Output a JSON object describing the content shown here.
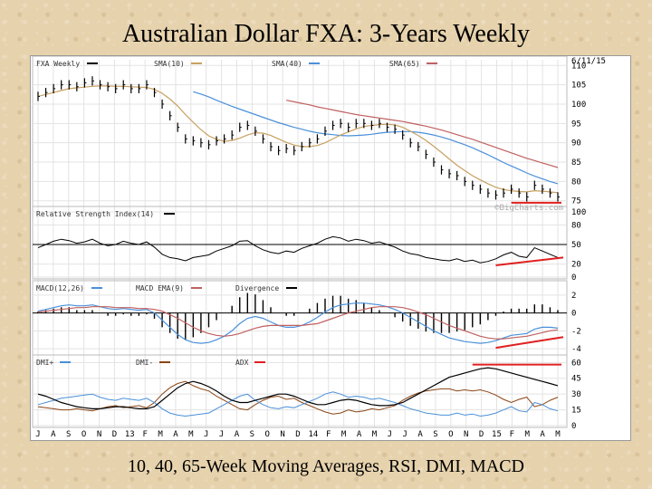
{
  "slide": {
    "title": "Australian Dollar FXA: 3-Years Weekly",
    "caption": "10, 40, 65-Week Moving Averages, RSI, DMI, MACD"
  },
  "chart_data": {
    "type": "line",
    "date_label": "6/11/15",
    "watermark": "©BigCharts.com",
    "colors": {
      "price": "#000000",
      "ma10": "#c8a060",
      "ma40": "#4a90d9",
      "ma65": "#c06060",
      "annotation": "#e02020",
      "divergence": "#000000",
      "adx": "#000000",
      "dmi_plus": "#4a90d9",
      "dmi_minus": "#8b4513"
    },
    "x_ticks": [
      "J",
      "A",
      "S",
      "O",
      "N",
      "D",
      "13",
      "F",
      "M",
      "A",
      "M",
      "J",
      "J",
      "A",
      "S",
      "O",
      "N",
      "D",
      "14",
      "F",
      "M",
      "A",
      "M",
      "J",
      "J",
      "A",
      "S",
      "O",
      "N",
      "D",
      "15",
      "F",
      "M",
      "A",
      "M"
    ],
    "panels": [
      {
        "id": "price",
        "legend": [
          "FXA Weekly",
          "SMA(10)",
          "SMA(40)",
          "SMA(65)"
        ],
        "y_ticks": [
          110,
          105,
          100,
          95,
          90,
          85,
          80,
          75
        ],
        "ylim": [
          74,
          111
        ],
        "series": {
          "price": [
            102,
            103,
            104,
            105,
            105,
            104.5,
            105.5,
            106,
            105,
            104.5,
            104,
            105,
            104,
            104,
            105,
            103,
            100,
            97,
            94,
            91,
            90.5,
            90,
            89.5,
            90.5,
            91,
            92,
            94,
            94.5,
            93,
            91,
            89,
            88,
            88.5,
            88,
            89,
            90,
            91,
            93,
            94.5,
            95,
            94,
            95,
            95,
            94.5,
            95,
            94,
            93.5,
            92,
            90,
            89,
            87,
            85,
            83,
            82,
            81.5,
            80,
            79,
            78,
            77,
            76.5,
            77,
            78,
            77,
            76,
            79,
            78,
            77,
            76
          ],
          "ma10": [
            102,
            102.5,
            103,
            103.5,
            104,
            104.2,
            104.4,
            104.6,
            104.7,
            104.7,
            104.6,
            104.6,
            104.5,
            104.4,
            104.3,
            103.8,
            102.8,
            101.3,
            99.5,
            97.3,
            95.3,
            93.4,
            91.8,
            90.9,
            90.4,
            90.6,
            91.2,
            92,
            92.6,
            92.5,
            91.9,
            91,
            90.1,
            89.4,
            89,
            89,
            89.3,
            90,
            91,
            92,
            92.8,
            93.6,
            94.2,
            94.5,
            94.7,
            94.8,
            94.6,
            94,
            93,
            91.9,
            90.6,
            89.1,
            87.5,
            85.8,
            84.2,
            82.8,
            81.5,
            80.4,
            79.4,
            78.5,
            77.9,
            77.6,
            77.4,
            77.3,
            77.6,
            77.5,
            77.3,
            77.1
          ],
          "ma40": [
            null,
            null,
            null,
            null,
            null,
            null,
            null,
            null,
            null,
            null,
            null,
            null,
            null,
            null,
            null,
            null,
            null,
            null,
            null,
            null,
            103.2,
            102.6,
            101.9,
            101,
            100.2,
            99.4,
            98.7,
            98,
            97.3,
            96.6,
            95.9,
            95.2,
            94.6,
            94,
            93.5,
            93,
            92.6,
            92.3,
            92.1,
            91.9,
            91.8,
            91.9,
            92,
            92.2,
            92.5,
            92.7,
            92.8,
            92.9,
            92.9,
            92.7,
            92.4,
            92,
            91.5,
            90.9,
            90.2,
            89.5,
            88.7,
            87.8,
            86.9,
            85.9,
            84.9,
            84,
            83.1,
            82.2,
            81.4,
            80.7,
            80,
            79.4
          ],
          "ma65": [
            null,
            null,
            null,
            null,
            null,
            null,
            null,
            null,
            null,
            null,
            null,
            null,
            null,
            null,
            null,
            null,
            null,
            null,
            null,
            null,
            null,
            null,
            null,
            null,
            null,
            null,
            null,
            null,
            null,
            null,
            null,
            null,
            101,
            100.6,
            100.2,
            99.8,
            99.3,
            98.9,
            98.5,
            98.1,
            97.7,
            97.3,
            97,
            96.7,
            96.4,
            96.1,
            95.8,
            95.5,
            95.1,
            94.7,
            94.3,
            93.8,
            93.3,
            92.7,
            92.1,
            91.5,
            90.9,
            90.2,
            89.5,
            88.8,
            88.1,
            87.4,
            86.7,
            86,
            85.4,
            84.8,
            84.2,
            83.6
          ]
        }
      },
      {
        "id": "rsi",
        "legend": [
          "Relative Strength Index(14)"
        ],
        "y_ticks": [
          100,
          80,
          50,
          20,
          0
        ],
        "ylim": [
          0,
          100
        ],
        "series": {
          "rsi": [
            45,
            50,
            55,
            58,
            56,
            52,
            54,
            58,
            52,
            48,
            50,
            55,
            52,
            50,
            54,
            46,
            35,
            30,
            28,
            25,
            30,
            32,
            34,
            40,
            44,
            48,
            55,
            56,
            48,
            42,
            38,
            36,
            40,
            38,
            44,
            48,
            52,
            58,
            62,
            60,
            55,
            58,
            56,
            52,
            54,
            50,
            46,
            40,
            36,
            34,
            30,
            28,
            26,
            25,
            28,
            24,
            26,
            22,
            24,
            28,
            34,
            38,
            32,
            30,
            45,
            40,
            35,
            30
          ]
        }
      },
      {
        "id": "macd",
        "legend": [
          "MACD(12,26)",
          "MACD EMA(9)",
          "Divergence"
        ],
        "y_ticks": [
          2,
          0,
          -2,
          -4
        ],
        "ylim": [
          -4.5,
          3
        ],
        "series": {
          "macd": [
            0.2,
            0.4,
            0.6,
            0.8,
            0.9,
            0.8,
            0.8,
            0.9,
            0.7,
            0.5,
            0.4,
            0.5,
            0.4,
            0.3,
            0.4,
            0,
            -0.8,
            -1.6,
            -2.4,
            -3,
            -3.3,
            -3.4,
            -3.3,
            -3,
            -2.6,
            -2,
            -1.2,
            -0.6,
            -0.4,
            -0.6,
            -1,
            -1.4,
            -1.6,
            -1.6,
            -1.4,
            -1,
            -0.5,
            0.1,
            0.6,
            0.9,
            1,
            1.1,
            1.1,
            1,
            0.9,
            0.7,
            0.4,
            0,
            -0.5,
            -1,
            -1.5,
            -2,
            -2.4,
            -2.8,
            -3,
            -3.2,
            -3.3,
            -3.4,
            -3.3,
            -3.1,
            -2.8,
            -2.5,
            -2.4,
            -2.3,
            -1.8,
            -1.6,
            -1.6,
            -1.7
          ],
          "signal": [
            0.1,
            0.2,
            0.3,
            0.4,
            0.5,
            0.6,
            0.6,
            0.7,
            0.7,
            0.7,
            0.6,
            0.6,
            0.6,
            0.5,
            0.5,
            0.4,
            0.2,
            -0.2,
            -0.6,
            -1.1,
            -1.6,
            -2,
            -2.3,
            -2.5,
            -2.6,
            -2.5,
            -2.3,
            -2,
            -1.7,
            -1.5,
            -1.4,
            -1.4,
            -1.4,
            -1.4,
            -1.4,
            -1.3,
            -1.2,
            -0.9,
            -0.6,
            -0.3,
            0,
            0.2,
            0.4,
            0.6,
            0.7,
            0.7,
            0.7,
            0.6,
            0.4,
            0.1,
            -0.2,
            -0.6,
            -1,
            -1.4,
            -1.7,
            -2,
            -2.3,
            -2.6,
            -2.8,
            -2.9,
            -2.9,
            -2.8,
            -2.7,
            -2.6,
            -2.4,
            -2.2,
            -2,
            -1.9
          ]
        }
      },
      {
        "id": "dmi",
        "legend": [
          "DMI+",
          "DMI-",
          "ADX"
        ],
        "y_ticks": [
          60,
          45,
          30,
          15,
          0
        ],
        "ylim": [
          0,
          62
        ],
        "series": {
          "adx": [
            30,
            28,
            25,
            22,
            20,
            18,
            17,
            16,
            16,
            17,
            18,
            18,
            17,
            16,
            16,
            18,
            24,
            30,
            36,
            40,
            42,
            40,
            37,
            33,
            28,
            24,
            22,
            22,
            24,
            26,
            28,
            30,
            30,
            28,
            25,
            22,
            20,
            20,
            22,
            24,
            25,
            24,
            22,
            20,
            19,
            19,
            20,
            22,
            26,
            30,
            34,
            38,
            42,
            46,
            48,
            50,
            52,
            54,
            55,
            54,
            52,
            50,
            48,
            46,
            44,
            42,
            40,
            38
          ],
          "dmi_plus": [
            20,
            22,
            24,
            26,
            27,
            28,
            29,
            30,
            27,
            25,
            24,
            26,
            25,
            24,
            26,
            22,
            16,
            12,
            10,
            9,
            10,
            11,
            12,
            16,
            20,
            24,
            28,
            30,
            24,
            20,
            17,
            16,
            18,
            17,
            20,
            23,
            26,
            30,
            32,
            30,
            27,
            28,
            27,
            25,
            26,
            24,
            22,
            19,
            16,
            14,
            12,
            11,
            10,
            10,
            12,
            10,
            11,
            9,
            10,
            12,
            15,
            18,
            14,
            13,
            22,
            20,
            16,
            14
          ],
          "dmi_minus": [
            18,
            17,
            16,
            15,
            15,
            16,
            15,
            14,
            16,
            18,
            19,
            17,
            18,
            19,
            17,
            22,
            30,
            36,
            40,
            42,
            38,
            35,
            33,
            28,
            24,
            20,
            16,
            15,
            20,
            24,
            27,
            28,
            25,
            26,
            22,
            19,
            16,
            13,
            11,
            12,
            15,
            13,
            14,
            16,
            15,
            17,
            19,
            24,
            28,
            31,
            33,
            34,
            35,
            35,
            33,
            34,
            33,
            34,
            32,
            29,
            25,
            22,
            25,
            27,
            18,
            20,
            24,
            27
          ]
        }
      }
    ]
  }
}
